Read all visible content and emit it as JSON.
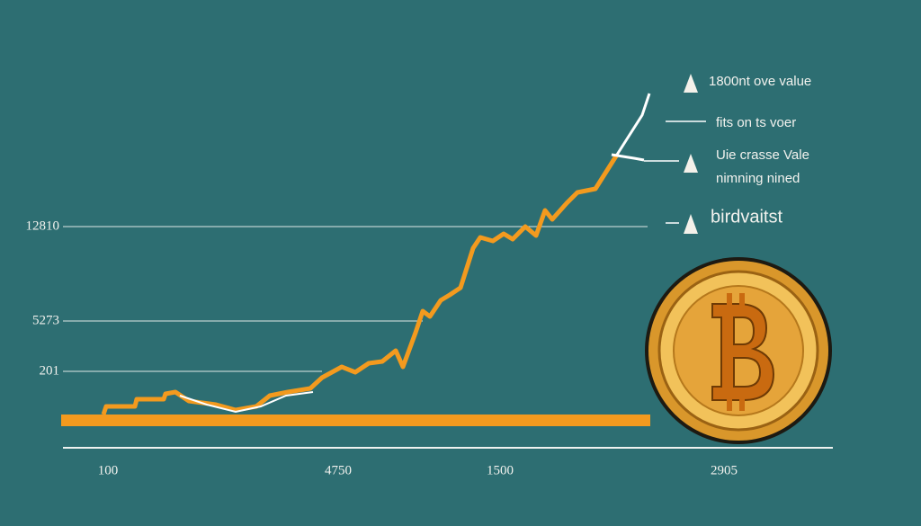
{
  "y_labels": [
    "12810",
    "5273",
    "201"
  ],
  "x_labels": [
    "100",
    "4750",
    "1500",
    "2905"
  ],
  "annotations": [
    "1800nt ove value",
    "fits on ts voer",
    "Uie crasse Vale",
    "nimning nined",
    "birdvaitst"
  ]
}
